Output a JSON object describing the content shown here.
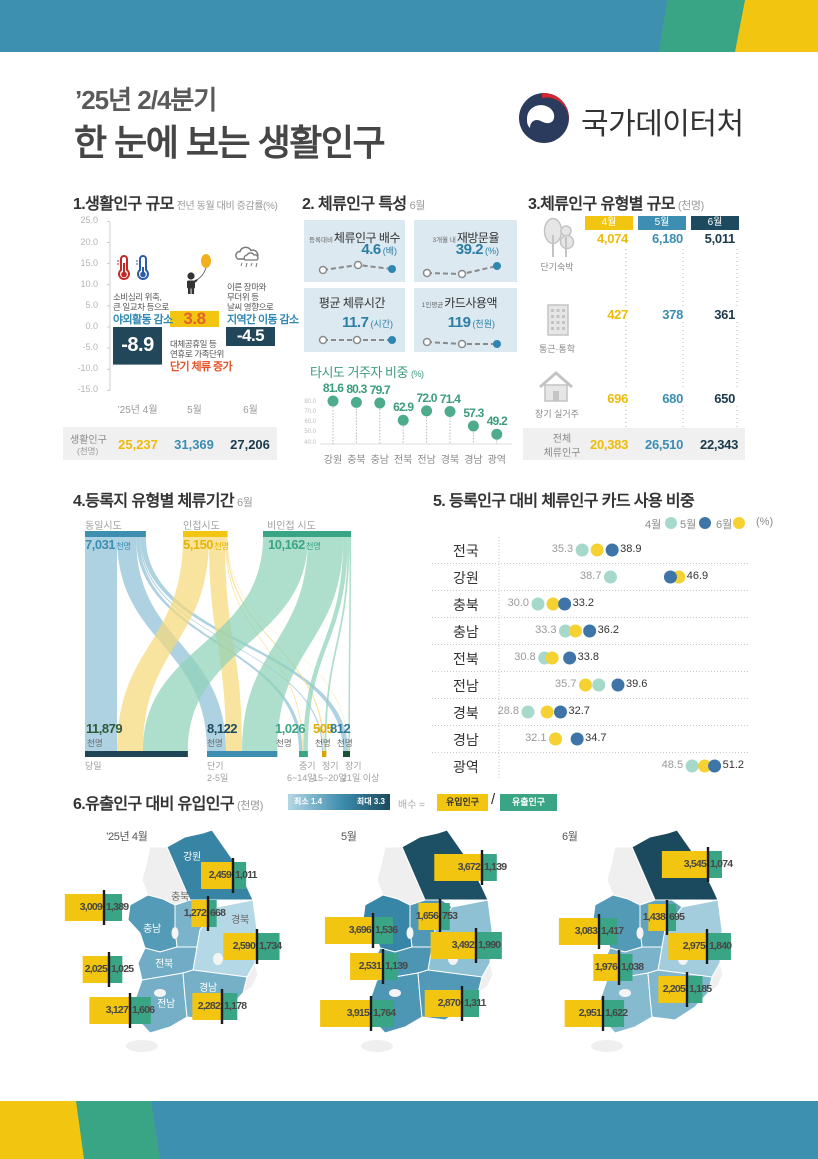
{
  "header": {
    "period": "’25년 2/4분기",
    "title": "한 눈에 보는 생활인구",
    "org_name": "국가데이터처"
  },
  "colors": {
    "blue": "#3e90b0",
    "green": "#3aa585",
    "yellow": "#f2c511",
    "navy": "#1d4a5e",
    "panel": "#dce9f0",
    "band_gray": "#f0f0f0",
    "highlight_blue": "#2f89b4",
    "highlight_orange": "#e2552b"
  },
  "section1": {
    "title": "1.생활인구 규모",
    "subtitle": "전년 동월 대비 증감률(%)",
    "notes": [
      {
        "line1": "소비심리 위축,",
        "line2": "큰 일교차 등으로",
        "highlight": "야외활동 감소"
      },
      {
        "line1": "대체공휴일 등",
        "line2": "연휴로 가족단위",
        "highlight": "단기 체류 증가"
      },
      {
        "line1": "이른 장마와",
        "line2": "무더위 등",
        "line3": "날씨 영향으로",
        "highlight": "지역간 이동 감소"
      }
    ],
    "population_label": "생활인구",
    "population_unit": "(천명)",
    "population_values": [
      "25,237",
      "31,369",
      "27,206"
    ]
  },
  "section2": {
    "title": "2. 체류인구 특성",
    "month": "6월",
    "cards": [
      {
        "prefix": "등록대비",
        "label": "체류인구 배수",
        "value": "4.6",
        "unit": "(배)"
      },
      {
        "prefix": "3개월 내",
        "label": "재방문율",
        "value": "39.2",
        "unit": "(%)"
      },
      {
        "prefix": "",
        "label": "평균 체류시간",
        "value": "11.7",
        "unit": "(시간)"
      },
      {
        "prefix": "1인평균",
        "label": "카드사용액",
        "value": "119",
        "unit": "(천원)"
      }
    ],
    "ratio_title": "타시도 거주자 비중",
    "ratio_unit": "(%)"
  },
  "section3": {
    "title": "3.체류인구 유형별 규모",
    "unit": "(천명)",
    "months": [
      "4월",
      "5월",
      "6월"
    ],
    "rows": [
      {
        "label": "단기숙박",
        "values": [
          "4,074",
          "6,180",
          "5,011"
        ]
      },
      {
        "label": "통근·통학",
        "values": [
          "427",
          "378",
          "361"
        ]
      },
      {
        "label": "장기 실거주",
        "values": [
          "696",
          "680",
          "650"
        ]
      }
    ],
    "total_label_1": "전체",
    "total_label_2": "체류인구",
    "total_values": [
      "20,383",
      "26,510",
      "22,343"
    ]
  },
  "section4": {
    "title": "4.등록지 유형별 체류기간",
    "month": "6월",
    "unit": "천명",
    "sources": [
      {
        "label": "동일시도",
        "value": "7,031"
      },
      {
        "label": "인접시도",
        "value": "5,150"
      },
      {
        "label": "비인접 시도",
        "value": "10,162"
      }
    ],
    "targets": [
      {
        "label": "당일",
        "sublabel": "",
        "value": "11,879"
      },
      {
        "label": "단기",
        "sublabel": "2-5일",
        "value": "8,122"
      },
      {
        "label": "중기",
        "sublabel": "6~14일",
        "value": "1,026"
      },
      {
        "label": "정기",
        "sublabel": "15~20일",
        "value": "505"
      },
      {
        "label": "장기",
        "sublabel": "21일 이상",
        "value": "812"
      }
    ]
  },
  "section5": {
    "title": "5. 등록인구 대비 체류인구 카드 사용 비중",
    "legend": [
      "4월",
      "5월",
      "6월"
    ],
    "unit": "(%)"
  },
  "section6": {
    "title": "6.유출인구 대비 유입인구",
    "unit": "(천명)",
    "scale_min": "최소 1.4",
    "scale_max": "최대 3.3",
    "ratio_label": "배수 =",
    "inflow_label": "유입인구",
    "slash": "/",
    "outflow_label": "유출인구"
  },
  "chart_data": [
    {
      "id": "living-population-change",
      "type": "bar",
      "title": "1.생활인구 규모",
      "subtitle": "전년 동월 대비 증감률(%)",
      "categories": [
        "’25년 4월",
        "5월",
        "6월"
      ],
      "values": [
        -8.9,
        3.8,
        -4.5
      ],
      "labels": [
        "-8.9",
        "3.8",
        "-4.5"
      ],
      "yticks": [
        "25.0",
        "20.0",
        "15.0",
        "10.0",
        "5.0",
        "0.0",
        "-5.0",
        "-10.0",
        "-15.0"
      ],
      "ylim": [
        -15,
        25
      ],
      "grid": false,
      "bar_colors": [
        "#22475a",
        "#f2c511",
        "#22475a"
      ],
      "label_colors": [
        "#ffffff",
        "#e3622b",
        "#ffffff"
      ]
    },
    {
      "id": "other-province-resident-share",
      "type": "lollipop",
      "title": "타시도 거주자 비중 (%)",
      "categories": [
        "강원",
        "충북",
        "충남",
        "전북",
        "전남",
        "경북",
        "경남",
        "광역"
      ],
      "values": [
        81.6,
        80.3,
        79.7,
        62.9,
        72.0,
        71.4,
        57.3,
        49.2
      ],
      "labels": [
        "81.6",
        "80.3",
        "79.7",
        "62.9",
        "72.0",
        "71.4",
        "57.3",
        "49.2"
      ],
      "yticks": [
        "80.0",
        "70.0",
        "60.0",
        "50.0",
        "40.0"
      ],
      "ylim": [
        40,
        85
      ]
    },
    {
      "id": "stay-population-by-type",
      "type": "table",
      "title": "3.체류인구 유형별 규모 (천명)",
      "columns": [
        "4월",
        "5월",
        "6월"
      ],
      "rows": [
        [
          "단기숙박",
          4074,
          6180,
          5011
        ],
        [
          "통근·통학",
          427,
          378,
          361
        ],
        [
          "장기 실거주",
          696,
          680,
          650
        ],
        [
          "전체 체류인구",
          20383,
          26510,
          22343
        ]
      ]
    },
    {
      "id": "stay-duration-by-registration",
      "type": "sankey",
      "title": "4.등록지 유형별 체류기간 6월",
      "unit": "천명",
      "nodes_source": [
        {
          "name": "동일시도",
          "value": 7031
        },
        {
          "name": "인접시도",
          "value": 5150
        },
        {
          "name": "비인접 시도",
          "value": 10162
        }
      ],
      "nodes_target": [
        {
          "name": "당일",
          "value": 11879
        },
        {
          "name": "단기 2-5일",
          "value": 8122
        },
        {
          "name": "중기 6~14일",
          "value": 1026
        },
        {
          "name": "정기 15~20일",
          "value": 505
        },
        {
          "name": "장기 21일 이상",
          "value": 812
        }
      ],
      "flows_estimated": [
        [
          3695,
          2200,
          400,
          150,
          586
        ],
        [
          3000,
          1850,
          100,
          150,
          50
        ],
        [
          5184,
          4072,
          526,
          205,
          176
        ]
      ]
    },
    {
      "id": "card-usage-share",
      "type": "dot",
      "title": "5. 등록인구 대비 체류인구 카드 사용 비중",
      "unit": "%",
      "series": [
        "4월",
        "5월",
        "6월"
      ],
      "colors": [
        "#a6d9cb",
        "#3f74a8",
        "#f5d232"
      ],
      "categories": [
        "전국",
        "강원",
        "충북",
        "충남",
        "전북",
        "전남",
        "경북",
        "경남",
        "광역"
      ],
      "values": [
        [
          35.3,
          38.9,
          37.1
        ],
        [
          38.7,
          45.9,
          46.9
        ],
        [
          30.0,
          33.2,
          31.8
        ],
        [
          33.3,
          36.2,
          34.5
        ],
        [
          30.8,
          33.8,
          31.7
        ],
        [
          37.3,
          39.6,
          35.7
        ],
        [
          28.8,
          32.7,
          31.1
        ],
        [
          32.1,
          34.7,
          32.1
        ],
        [
          48.5,
          51.2,
          50.0
        ]
      ],
      "min_labels": [
        "35.3",
        "38.7",
        "30.0",
        "33.3",
        "30.8",
        "35.7",
        "28.8",
        "32.1",
        "48.5"
      ],
      "max_labels": [
        "38.9",
        "46.9",
        "33.2",
        "36.2",
        "33.8",
        "39.6",
        "32.7",
        "34.7",
        "51.2"
      ],
      "xlim": [
        28,
        52
      ]
    },
    {
      "id": "inflow-vs-outflow",
      "type": "choropleth",
      "title": "6.유출인구 대비 유입인구 (천명)",
      "legend": {
        "min": 1.4,
        "max": 3.3,
        "metric": "배수 = 유입인구 / 유출인구"
      },
      "maps": [
        {
          "label": "’25년 4월",
          "show_region_names": true,
          "regions": [
            {
              "name": "강원",
              "inflow": "2,459",
              "outflow": "1,011"
            },
            {
              "name": "충북",
              "inflow": "1,272",
              "outflow": "668"
            },
            {
              "name": "충남",
              "inflow": "3,009",
              "outflow": "1,389"
            },
            {
              "name": "경북",
              "inflow": "2,590",
              "outflow": "1,734"
            },
            {
              "name": "전북",
              "inflow": "2,025",
              "outflow": "1,025"
            },
            {
              "name": "전남",
              "inflow": "3,127",
              "outflow": "1,606"
            },
            {
              "name": "경남",
              "inflow": "2,282",
              "outflow": "1,178"
            }
          ]
        },
        {
          "label": "5월",
          "show_region_names": false,
          "regions": [
            {
              "name": "강원",
              "inflow": "3,672",
              "outflow": "1,139"
            },
            {
              "name": "충북",
              "inflow": "1,656",
              "outflow": "753"
            },
            {
              "name": "충남",
              "inflow": "3,696",
              "outflow": "1,536"
            },
            {
              "name": "경북",
              "inflow": "3,492",
              "outflow": "1,990"
            },
            {
              "name": "전북",
              "inflow": "2,531",
              "outflow": "1,139"
            },
            {
              "name": "전남",
              "inflow": "3,915",
              "outflow": "1,764"
            },
            {
              "name": "경남",
              "inflow": "2,870",
              "outflow": "1,311"
            }
          ]
        },
        {
          "label": "6월",
          "show_region_names": false,
          "regions": [
            {
              "name": "강원",
              "inflow": "3,545",
              "outflow": "1,074"
            },
            {
              "name": "충북",
              "inflow": "1,438",
              "outflow": "695"
            },
            {
              "name": "충남",
              "inflow": "3,083",
              "outflow": "1,417"
            },
            {
              "name": "경북",
              "inflow": "2,975",
              "outflow": "1,840"
            },
            {
              "name": "전북",
              "inflow": "1,976",
              "outflow": "1,038"
            },
            {
              "name": "전남",
              "inflow": "2,951",
              "outflow": "1,622"
            },
            {
              "name": "경남",
              "inflow": "2,205",
              "outflow": "1,185"
            }
          ]
        }
      ]
    }
  ]
}
